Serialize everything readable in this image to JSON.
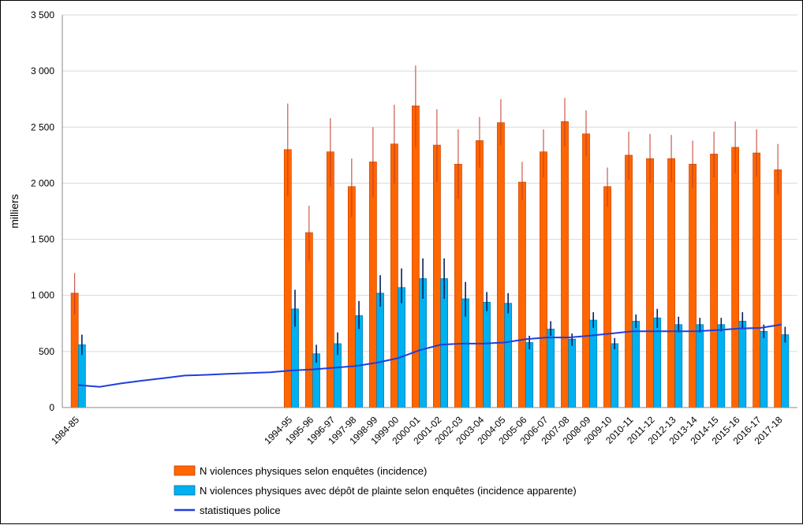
{
  "chart_data": {
    "type": "bar",
    "title": "",
    "xlabel": "",
    "ylabel": "milliers",
    "ylim": [
      0,
      3500
    ],
    "yticks": [
      0,
      500,
      1000,
      1500,
      2000,
      2500,
      3000,
      3500
    ],
    "ytick_labels": [
      "0",
      "500",
      "1 000",
      "1 500",
      "2 000",
      "2 500",
      "3 000",
      "3 500"
    ],
    "grid": "horizontal",
    "legend_position": "bottom",
    "categories": [
      "1984-85",
      "1994-95",
      "1995-96",
      "1996-97",
      "1997-98",
      "1998-99",
      "1999-00",
      "2000-01",
      "2001-02",
      "2002-03",
      "2003-04",
      "2004-05",
      "2005-06",
      "2006-07",
      "2007-08",
      "2008-09",
      "2009-10",
      "2010-11",
      "2011-12",
      "2012-13",
      "2013-14",
      "2014-15",
      "2015-16",
      "2016-17",
      "2017-18"
    ],
    "x_positions": [
      1984.5,
      1994.5,
      1995.5,
      1996.5,
      1997.5,
      1998.5,
      1999.5,
      2000.5,
      2001.5,
      2002.5,
      2003.5,
      2004.5,
      2005.5,
      2006.5,
      2007.5,
      2008.5,
      2009.5,
      2010.5,
      2011.5,
      2012.5,
      2013.5,
      2014.5,
      2015.5,
      2016.5,
      2017.5
    ],
    "series": [
      {
        "name": "N violences physiques selon enquêtes (incidence)",
        "kind": "bar",
        "color": "#FF6600",
        "error_color": "#C0392B",
        "values": [
          1020,
          2300,
          1560,
          2280,
          1970,
          2190,
          2350,
          2690,
          2340,
          2170,
          2380,
          2540,
          2010,
          2280,
          2550,
          2440,
          1970,
          2250,
          2220,
          2220,
          2170,
          2260,
          2320,
          2270,
          2120
        ],
        "error_low": [
          830,
          1890,
          1310,
          1970,
          1700,
          1880,
          1990,
          2320,
          2010,
          1860,
          2140,
          2340,
          1850,
          2050,
          2330,
          2240,
          1790,
          2030,
          2000,
          2010,
          1960,
          2050,
          2090,
          2060,
          1900
        ],
        "error_high": [
          1200,
          2710,
          1800,
          2580,
          2220,
          2500,
          2700,
          3050,
          2660,
          2480,
          2590,
          2750,
          2190,
          2480,
          2760,
          2650,
          2140,
          2460,
          2440,
          2430,
          2380,
          2460,
          2550,
          2480,
          2350
        ]
      },
      {
        "name": "N violences physiques avec dépôt de plainte selon enquêtes (incidence apparente)",
        "kind": "bar",
        "color": "#00B0F0",
        "error_color": "#002060",
        "values": [
          560,
          880,
          480,
          570,
          820,
          1020,
          1070,
          1150,
          1150,
          970,
          940,
          930,
          580,
          700,
          610,
          780,
          570,
          770,
          800,
          740,
          740,
          740,
          770,
          680,
          650
        ],
        "error_low": [
          470,
          720,
          400,
          470,
          700,
          900,
          930,
          970,
          970,
          810,
          860,
          840,
          520,
          640,
          550,
          710,
          520,
          710,
          710,
          670,
          670,
          680,
          700,
          620,
          580
        ],
        "error_high": [
          650,
          1050,
          560,
          670,
          950,
          1180,
          1240,
          1330,
          1330,
          1120,
          1030,
          1020,
          640,
          770,
          660,
          850,
          620,
          830,
          880,
          810,
          800,
          800,
          850,
          740,
          720
        ]
      },
      {
        "name": "statistiques police",
        "kind": "line",
        "color": "#1F3FDB",
        "x": [
          1984.5,
          1985.5,
          1986.5,
          1987.5,
          1988.5,
          1989.5,
          1990.5,
          1991.5,
          1992.5,
          1993.5,
          1994.5,
          1995.5,
          1996.5,
          1997.5,
          1998.5,
          1999.5,
          2000.5,
          2001.5,
          2002.5,
          2003.5,
          2004.5,
          2005.5,
          2006.5,
          2007.5,
          2008.5,
          2009.5,
          2010.5,
          2011.5,
          2012.5,
          2013.5,
          2014.5,
          2015.5,
          2016.5,
          2017.5
        ],
        "values": [
          200,
          185,
          215,
          240,
          262,
          285,
          292,
          300,
          308,
          315,
          330,
          340,
          355,
          370,
          400,
          440,
          510,
          560,
          570,
          570,
          580,
          610,
          625,
          625,
          640,
          660,
          680,
          680,
          680,
          680,
          690,
          705,
          710,
          740
        ]
      }
    ]
  }
}
